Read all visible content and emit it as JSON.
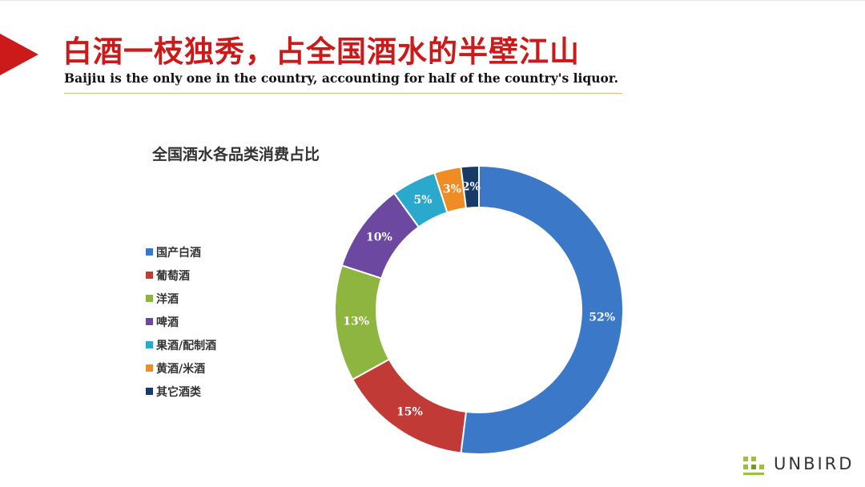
{
  "header": {
    "title": "白酒一枝独秀，占全国酒水的半壁江山",
    "subtitle": "Baijiu is the only one in the country, accounting for half of the country's liquor."
  },
  "colors": {
    "title_red": "#cc1a1a",
    "rule": "#e7b98a"
  },
  "chart_data": {
    "type": "pie",
    "style": "donut",
    "title": "全国酒水各品类消费占比",
    "legend_position": "left",
    "start_angle_deg": 0,
    "direction": "clockwise",
    "series": [
      {
        "name": "国产白酒",
        "value": 52,
        "label": "52%",
        "color": "#3b78c8"
      },
      {
        "name": "葡萄酒",
        "value": 15,
        "label": "15%",
        "color": "#c23a36"
      },
      {
        "name": "洋酒",
        "value": 13,
        "label": "13%",
        "color": "#8db540"
      },
      {
        "name": "啤酒",
        "value": 10,
        "label": "10%",
        "color": "#6c48a0"
      },
      {
        "name": "果酒/配制酒",
        "value": 5,
        "label": "5%",
        "color": "#2aa9cc"
      },
      {
        "name": "黄酒/米酒",
        "value": 3,
        "label": "3%",
        "color": "#f08c26"
      },
      {
        "name": "其它酒类",
        "value": 2,
        "label": "2%",
        "color": "#183a66"
      }
    ]
  },
  "logo": {
    "text": "UNBIRD"
  }
}
